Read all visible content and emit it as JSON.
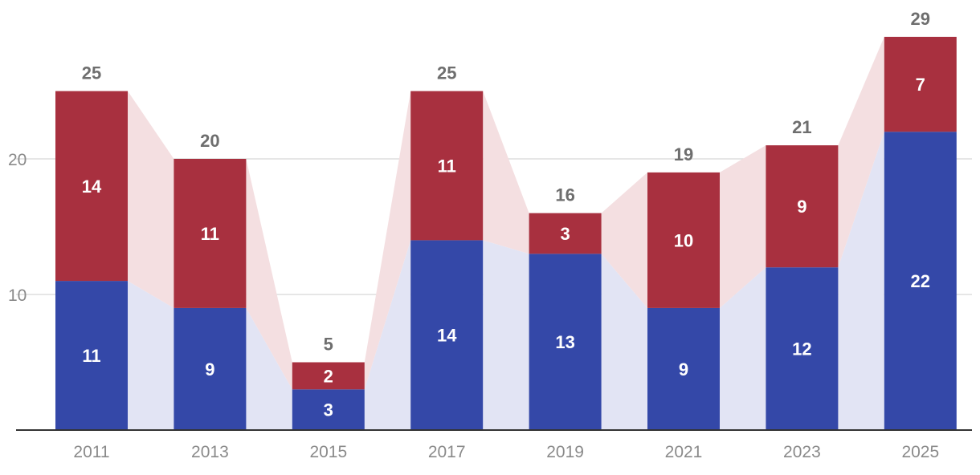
{
  "colors": {
    "bottom_series": "#3448a8",
    "top_series": "#a8303f",
    "bottom_band": "#e2e4f4",
    "top_band": "#f4dfe1",
    "grid": "#dddddd",
    "axis": "#333333",
    "tick_text": "#8a8a8a",
    "total_text": "#6e6e6e"
  },
  "chart_data": {
    "type": "bar",
    "stacked": true,
    "categories": [
      "2011",
      "2013",
      "2015",
      "2017",
      "2019",
      "2021",
      "2023",
      "2025"
    ],
    "series": [
      {
        "values": [
          11,
          9,
          3,
          14,
          13,
          9,
          12,
          22
        ]
      },
      {
        "values": [
          14,
          11,
          2,
          11,
          3,
          10,
          9,
          7
        ]
      }
    ],
    "totals": [
      25,
      20,
      5,
      25,
      16,
      19,
      21,
      29
    ],
    "y_ticks": [
      10,
      20
    ],
    "ylim": [
      0,
      29
    ],
    "grid": true,
    "title": "",
    "xlabel": "",
    "ylabel": ""
  }
}
